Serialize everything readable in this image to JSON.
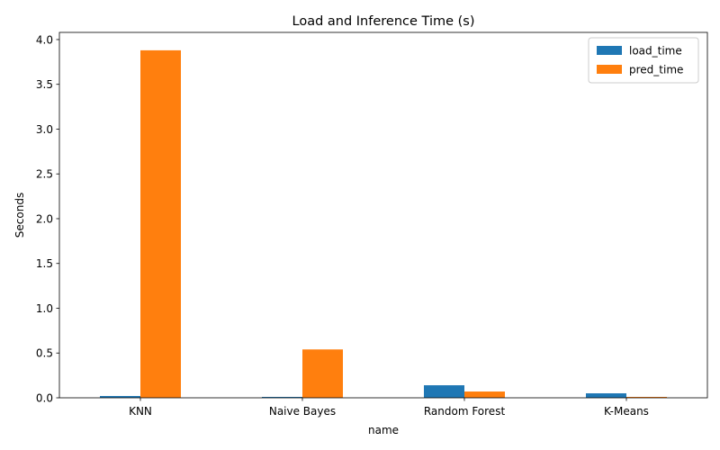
{
  "chart_data": {
    "type": "bar",
    "title": "Load and Inference Time (s)",
    "xlabel": "name",
    "ylabel": "Seconds",
    "categories": [
      "KNN",
      "Naive Bayes",
      "Random Forest",
      "K-Means"
    ],
    "series": [
      {
        "name": "load_time",
        "color": "#1f77b4",
        "values": [
          0.02,
          0.01,
          0.14,
          0.05
        ]
      },
      {
        "name": "pred_time",
        "color": "#ff7f0e",
        "values": [
          3.88,
          0.54,
          0.07,
          0.01
        ]
      }
    ],
    "ylim": [
      0,
      4.08
    ],
    "yticks": [
      0.0,
      0.5,
      1.0,
      1.5,
      2.0,
      2.5,
      3.0,
      3.5,
      4.0
    ],
    "ytick_labels": [
      "0.0",
      "0.5",
      "1.0",
      "1.5",
      "2.0",
      "2.5",
      "3.0",
      "3.5",
      "4.0"
    ],
    "grid": false,
    "legend_position": "top-right"
  }
}
